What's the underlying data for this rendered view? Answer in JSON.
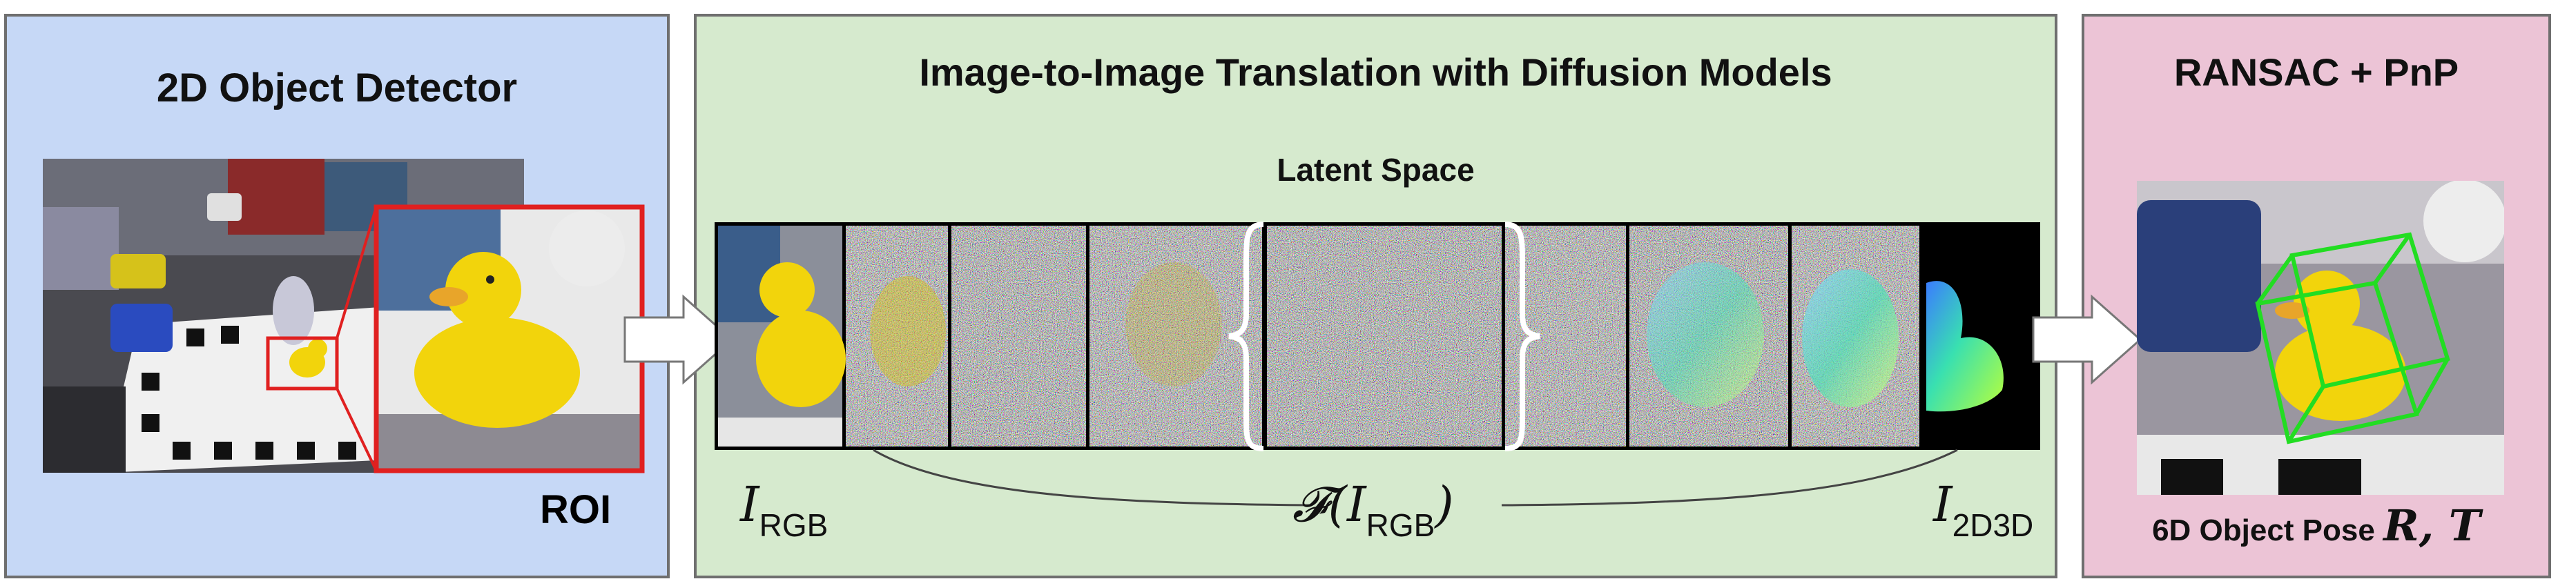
{
  "panels": {
    "detector": {
      "title": "2D Object Detector",
      "roi_label": "ROI"
    },
    "translation": {
      "title": "Image-to-Image Translation with Diffusion Models",
      "latent_label": "Latent Space"
    },
    "pose": {
      "title": "RANSAC + PnP",
      "pose_label": "6D Object Pose"
    }
  },
  "math": {
    "i_rgb": {
      "symbol": "I",
      "sub": "RGB"
    },
    "func": {
      "symbol": "𝓕(I",
      "sub": "RGB",
      "close": ")"
    },
    "i_2d3d": {
      "symbol": "I",
      "sub": "2D3D"
    },
    "pose_vars": "R, T"
  },
  "colors": {
    "detector_bg": "#c6d8f6",
    "translation_bg": "#d6eace",
    "pose_bg": "#ecc4d6",
    "roi_box": "#e02020",
    "bbox_3d": "#22dd22",
    "duck": "#f2d40c"
  },
  "icons": [
    "scene-image",
    "roi-crop-image",
    "noise-tiles",
    "nocs-map",
    "flow-arrow",
    "brace",
    "pose-image"
  ]
}
